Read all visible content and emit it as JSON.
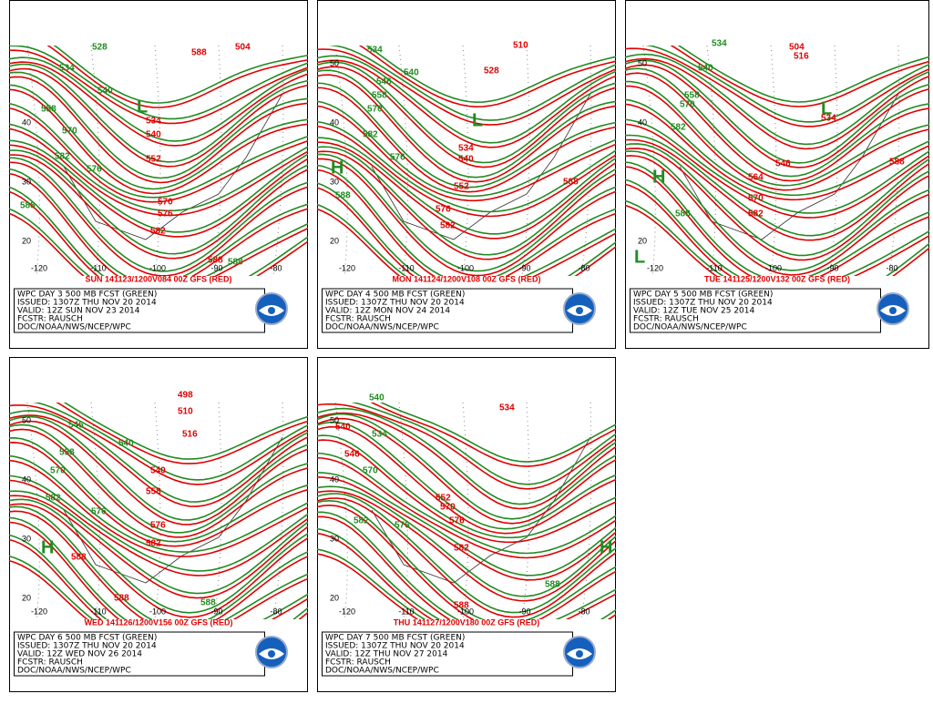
{
  "panels": [
    {
      "caption": "SUN 141123/1200V084  00Z GFS (RED)",
      "info": [
        "WPC DAY 3 500 MB FCST (GREEN)",
        "ISSUED: 1307Z THU NOV 20 2014",
        "VALID: 12Z SUN NOV 23 2014",
        "FCSTR: RAUSCH",
        "DOC/NOAA/NWS/NCEP/WPC"
      ],
      "latitudes": [
        40,
        30,
        20
      ],
      "longitudes": [
        -120,
        -110,
        -100,
        -90,
        -80
      ],
      "green_labels": [
        528,
        534,
        540,
        558,
        570,
        582,
        576,
        588,
        588
      ],
      "red_labels": [
        504,
        588,
        534,
        540,
        552,
        570,
        576,
        582,
        588
      ],
      "centers": [
        "L"
      ]
    },
    {
      "caption": "MON 141124/1200V108  00Z GFS (RED)",
      "info": [
        "WPC DAY 4 500 MB FCST (GREEN)",
        "ISSUED: 1307Z THU NOV 20 2014",
        "VALID: 12Z MON NOV 24 2014",
        "FCSTR: RAUSCH",
        "DOC/NOAA/NWS/NCEP/WPC"
      ],
      "latitudes": [
        50,
        40,
        30,
        20
      ],
      "longitudes": [
        -120,
        -110,
        -100,
        -90,
        -80
      ],
      "green_labels": [
        534,
        540,
        546,
        558,
        570,
        582,
        576,
        588
      ],
      "red_labels": [
        510,
        528,
        534,
        540,
        552,
        576,
        582,
        588
      ],
      "centers": [
        "H",
        "L"
      ]
    },
    {
      "caption": "TUE 141125/1200V132  00Z GFS (RED)",
      "info": [
        "WPC DAY 5 500 MB FCST (GREEN)",
        "ISSUED: 1307Z THU NOV 20 2014",
        "VALID: 12Z TUE NOV 25 2014",
        "FCSTR: RAUSCH",
        "DOC/NOAA/NWS/NCEP/WPC"
      ],
      "latitudes": [
        50,
        40,
        20
      ],
      "longitudes": [
        -120,
        -110,
        -100,
        -90,
        -80
      ],
      "green_labels": [
        534,
        540,
        558,
        570,
        582,
        588
      ],
      "red_labels": [
        504,
        516,
        534,
        546,
        564,
        570,
        582,
        588
      ],
      "centers": [
        "H",
        "L",
        "L"
      ]
    },
    {
      "caption": "WED 141126/1200V156  00Z GFS (RED)",
      "info": [
        "WPC DAY 6 500 MB FCST (GREEN)",
        "ISSUED: 1307Z THU NOV 20 2014",
        "VALID: 12Z WED NOV 26 2014",
        "FCSTR: RAUSCH",
        "DOC/NOAA/NWS/NCEP/WPC"
      ],
      "latitudes": [
        50,
        40,
        30,
        20
      ],
      "longitudes": [
        -120,
        -110,
        -100,
        -90,
        -80
      ],
      "green_labels": [
        546,
        558,
        570,
        582,
        576,
        588,
        540
      ],
      "red_labels": [
        498,
        510,
        516,
        540,
        558,
        576,
        582,
        588,
        588
      ],
      "centers": [
        "H"
      ]
    },
    {
      "caption": "THU 141127/1200V180  00Z GFS (RED)",
      "info": [
        "WPC DAY 7 500 MB FCST (GREEN)",
        "ISSUED: 1307Z THU NOV 20 2014",
        "VALID: 12Z THU NOV 27 2014",
        "FCSTR: RAUSCH",
        "DOC/NOAA/NWS/NCEP/WPC"
      ],
      "latitudes": [
        50,
        40,
        30,
        20
      ],
      "longitudes": [
        -120,
        -110,
        -100,
        -90,
        -80
      ],
      "green_labels": [
        540,
        534,
        570,
        576,
        582,
        588
      ],
      "red_labels": [
        534,
        540,
        546,
        552,
        570,
        576,
        582,
        588
      ],
      "centers": [
        "H"
      ]
    }
  ]
}
